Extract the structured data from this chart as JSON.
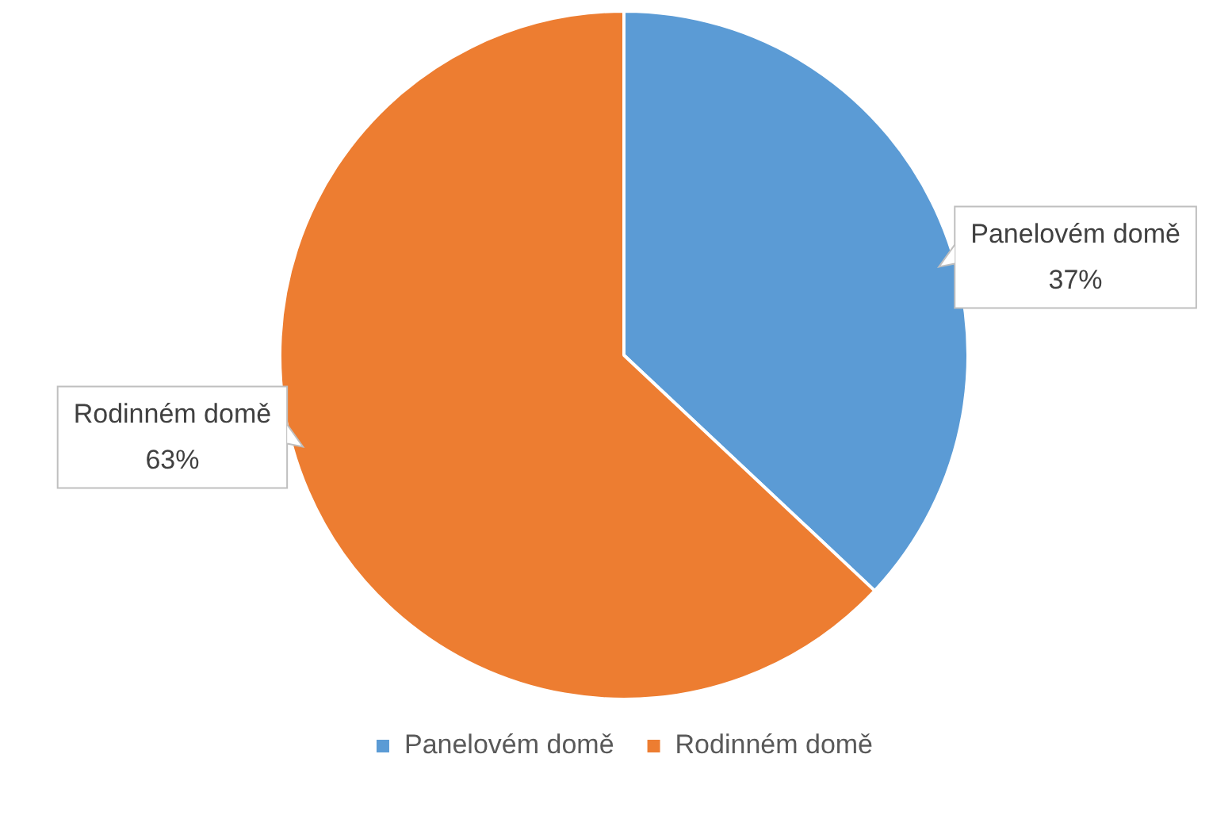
{
  "chart_data": {
    "type": "pie",
    "categories": [
      "Panelovém domě",
      "Rodinném domě"
    ],
    "values": [
      37,
      63
    ],
    "colors": [
      "#5b9bd5",
      "#ed7d31"
    ],
    "value_labels": [
      "37%",
      "63%"
    ],
    "legend": "bottom"
  }
}
